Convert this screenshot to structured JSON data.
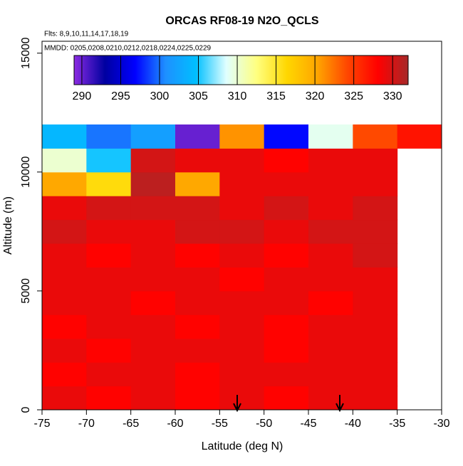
{
  "chart_data": {
    "type": "heatmap",
    "title": "ORCAS RF08-19 N2O_QCLS",
    "subtitle": "Flts: 8,9,10,11,14,17,18,19",
    "note": "MMDD: 0205,0208,0210,0212,0218,0224,0225,0229",
    "xlabel": "Latitude (deg N)",
    "ylabel": "Altitude (m)",
    "xlim": [
      -75,
      -30
    ],
    "xticks": [
      -75,
      -70,
      -65,
      -60,
      -55,
      -50,
      -45,
      -40,
      -35,
      -30
    ],
    "ylim": [
      0,
      15500
    ],
    "yticks": [
      0,
      5000,
      10000,
      15000
    ],
    "xbins": [
      -75,
      -70,
      -65,
      -60,
      -55,
      -50,
      -45,
      -40,
      -35,
      -30
    ],
    "ybins": [
      0,
      1000,
      2000,
      3000,
      4000,
      5000,
      6000,
      7000,
      8000,
      9000,
      10000,
      11000,
      12000
    ],
    "values": [
      [
        329,
        328,
        329,
        328,
        329,
        328,
        329,
        329,
        null
      ],
      [
        328,
        329,
        329,
        328,
        329,
        329,
        329,
        329,
        null
      ],
      [
        329,
        328,
        329,
        329,
        329,
        328,
        329,
        329,
        null
      ],
      [
        328,
        329,
        329,
        328,
        329,
        328,
        329,
        329,
        null
      ],
      [
        329,
        329,
        328,
        329,
        329,
        329,
        328,
        329,
        null
      ],
      [
        329,
        329,
        329,
        329,
        328,
        329,
        329,
        329,
        null
      ],
      [
        329,
        328,
        329,
        328,
        329,
        328,
        329,
        330,
        null
      ],
      [
        330,
        329,
        329,
        330,
        330,
        329,
        330,
        330,
        null
      ],
      [
        329,
        330,
        330,
        330,
        329,
        330,
        329,
        330,
        null
      ],
      [
        320,
        316,
        331,
        320,
        329,
        329,
        329,
        329,
        null
      ],
      [
        310,
        305,
        330,
        329,
        329,
        328,
        329,
        329,
        null
      ],
      [
        304,
        300,
        302,
        290,
        321,
        297,
        309,
        324,
        327
      ]
    ],
    "colorbar_lim": [
      289,
      332
    ],
    "colorbar_ticks": [
      290,
      295,
      300,
      305,
      310,
      315,
      320,
      325,
      330
    ],
    "colors": [
      "#8a2be2",
      "#0000a0",
      "#0000ff",
      "#1e90ff",
      "#00bfff",
      "#e0ffff",
      "#ffff80",
      "#ffd700",
      "#ffa500",
      "#ff4500",
      "#ff0000",
      "#a52a2a"
    ]
  }
}
